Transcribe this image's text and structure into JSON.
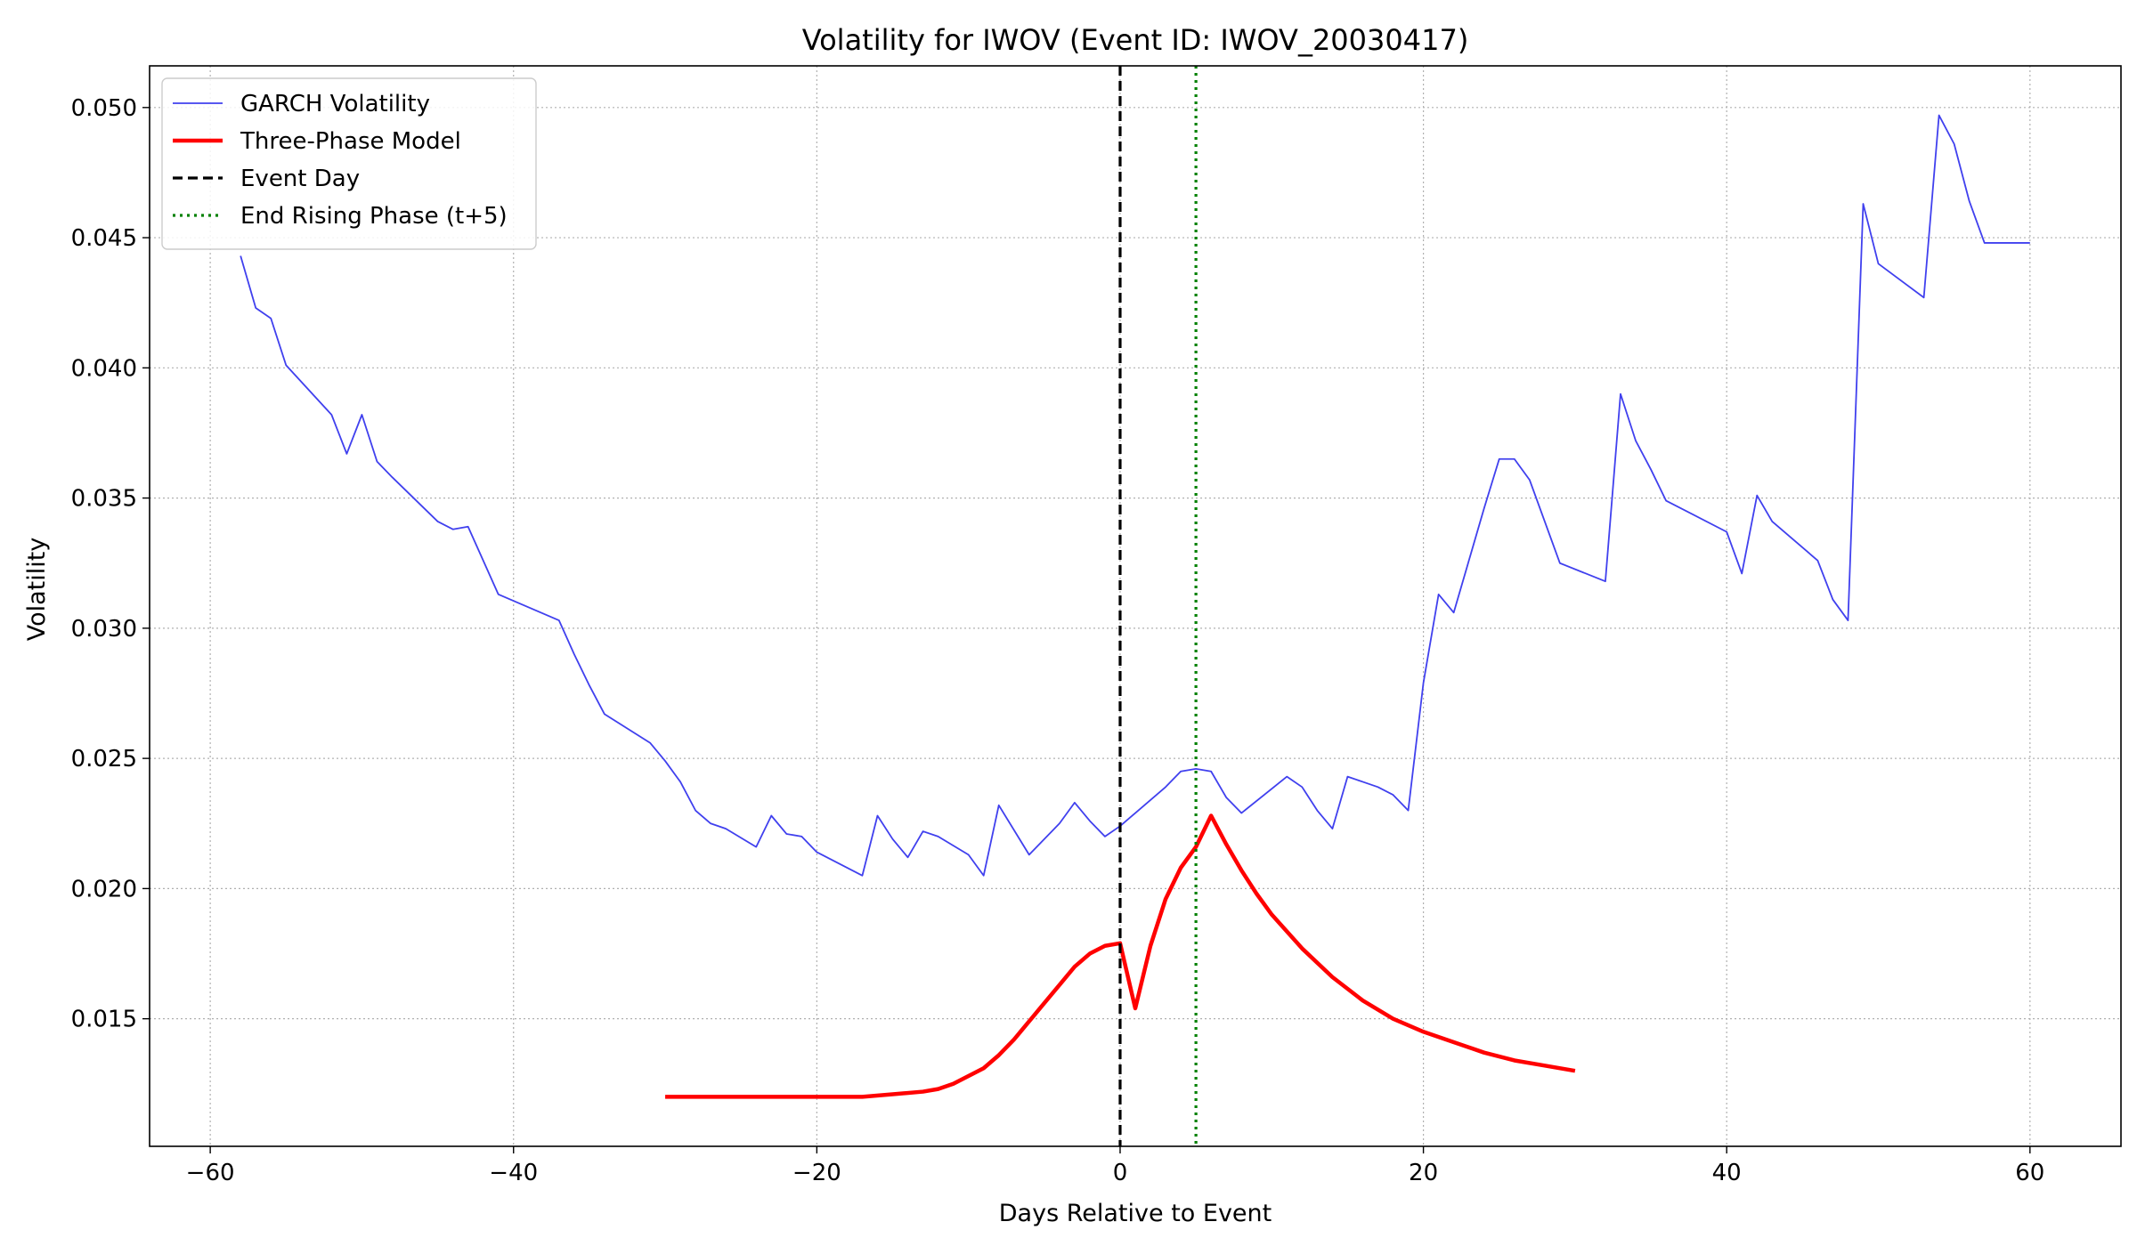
{
  "chart_data": {
    "type": "line",
    "title": "Volatility for IWOV (Event ID: IWOV_20030417)",
    "xlabel": "Days Relative to Event",
    "ylabel": "Volatility",
    "xlim": [
      -64,
      66
    ],
    "ylim": [
      0.0101,
      0.0516
    ],
    "xticks": [
      -60,
      -40,
      -20,
      0,
      20,
      40,
      60
    ],
    "xtick_labels": [
      "−60",
      "−40",
      "−20",
      "0",
      "20",
      "40",
      "60"
    ],
    "yticks": [
      0.015,
      0.02,
      0.025,
      0.03,
      0.035,
      0.04,
      0.045,
      0.05
    ],
    "ytick_labels": [
      "0.015",
      "0.020",
      "0.025",
      "0.030",
      "0.035",
      "0.040",
      "0.045",
      "0.050"
    ],
    "grid": true,
    "legend_position": "top-left",
    "series": [
      {
        "name": "GARCH Volatility",
        "color": "#4040ee",
        "style": "solid-thin",
        "x": [
          -58,
          -57,
          -56,
          -55,
          -52,
          -51,
          -50,
          -49,
          -48,
          -45,
          -44,
          -43,
          -41,
          -37,
          -36,
          -35,
          -34,
          -31,
          -30,
          -29,
          -28,
          -27,
          -26,
          -24,
          -23,
          -22,
          -21,
          -20,
          -17,
          -16,
          -15,
          -14,
          -13,
          -12,
          -10,
          -9,
          -8,
          -6,
          -4,
          -3,
          -2,
          -1,
          0,
          1,
          2,
          3,
          4,
          5,
          6,
          7,
          8,
          11,
          12,
          13,
          14,
          15,
          16,
          17,
          18,
          19,
          20,
          21,
          22,
          23,
          24,
          25,
          26,
          27,
          29,
          32,
          33,
          34,
          35,
          36,
          40,
          41,
          42,
          43,
          46,
          47,
          48,
          49,
          50,
          53,
          54,
          55,
          56,
          57,
          60
        ],
        "y": [
          0.0443,
          0.0423,
          0.0419,
          0.0401,
          0.0382,
          0.0367,
          0.0382,
          0.0364,
          0.0358,
          0.0341,
          0.0338,
          0.0339,
          0.0313,
          0.0303,
          0.029,
          0.0278,
          0.0267,
          0.0256,
          0.0249,
          0.0241,
          0.023,
          0.0225,
          0.0223,
          0.0216,
          0.0228,
          0.0221,
          0.022,
          0.0214,
          0.0205,
          0.0228,
          0.0219,
          0.0212,
          0.0222,
          0.022,
          0.0213,
          0.0205,
          0.0232,
          0.0213,
          0.0225,
          0.0233,
          0.0226,
          0.022,
          0.0224,
          0.0229,
          0.0234,
          0.0239,
          0.0245,
          0.0246,
          0.0245,
          0.0235,
          0.0229,
          0.0243,
          0.0239,
          0.023,
          0.0223,
          0.0243,
          0.0241,
          0.0239,
          0.0236,
          0.023,
          0.0279,
          0.0313,
          0.0306,
          0.0326,
          0.0346,
          0.0365,
          0.0365,
          0.0357,
          0.0325,
          0.0318,
          0.039,
          0.0372,
          0.0361,
          0.0349,
          0.0337,
          0.0321,
          0.0351,
          0.0341,
          0.0326,
          0.0311,
          0.0303,
          0.0463,
          0.044,
          0.0427,
          0.0497,
          0.0486,
          0.0464,
          0.0448,
          0.0448
        ]
      },
      {
        "name": "Three-Phase Model",
        "color": "#ff0000",
        "style": "solid-thick",
        "x": [
          -30,
          -25,
          -20,
          -17,
          -15,
          -13,
          -12,
          -11,
          -10,
          -9,
          -8,
          -7,
          -6,
          -5,
          -4,
          -3,
          -2,
          -1,
          0,
          1,
          2,
          3,
          4,
          5,
          6,
          7,
          8,
          9,
          10,
          12,
          14,
          16,
          18,
          20,
          22,
          24,
          26,
          28,
          30
        ],
        "y": [
          0.012,
          0.012,
          0.012,
          0.012,
          0.0121,
          0.0122,
          0.0123,
          0.0125,
          0.0128,
          0.0131,
          0.0136,
          0.0142,
          0.0149,
          0.0156,
          0.0163,
          0.017,
          0.0175,
          0.0178,
          0.0179,
          0.0154,
          0.0178,
          0.0196,
          0.0208,
          0.0216,
          0.0228,
          0.0217,
          0.0207,
          0.0198,
          0.019,
          0.0177,
          0.0166,
          0.0157,
          0.015,
          0.0145,
          0.0141,
          0.0137,
          0.0134,
          0.0132,
          0.013
        ]
      },
      {
        "name": "Event Day",
        "color": "#000000",
        "style": "dashed",
        "vline": 0
      },
      {
        "name": "End Rising Phase (t+5)",
        "color": "#008000",
        "style": "dotted",
        "vline": 5
      }
    ]
  }
}
